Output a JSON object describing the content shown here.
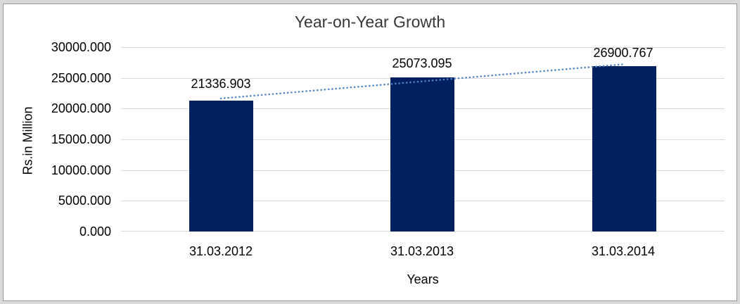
{
  "chart_data": {
    "type": "bar",
    "title": "Year-on-Year Growth",
    "xlabel": "Years",
    "ylabel": "Rs.in Million",
    "categories": [
      "31.03.2012",
      "31.03.2013",
      "31.03.2014"
    ],
    "values": [
      21336.903,
      25073.095,
      26900.767
    ],
    "value_labels": [
      "21336.903",
      "25073.095",
      "26900.767"
    ],
    "ylim": [
      0,
      30000
    ],
    "ytick_interval": 5000,
    "yticks": [
      "30000.000",
      "25000.000",
      "20000.000",
      "15000.000",
      "10000.000",
      "5000.000",
      "0.000"
    ],
    "grid": "horizontal",
    "legend": "none",
    "bar_color": "#002060",
    "gridline_color": "#d9d9d9",
    "trendline": {
      "type": "linear",
      "style": "dotted",
      "color": "#4f86c6"
    }
  }
}
